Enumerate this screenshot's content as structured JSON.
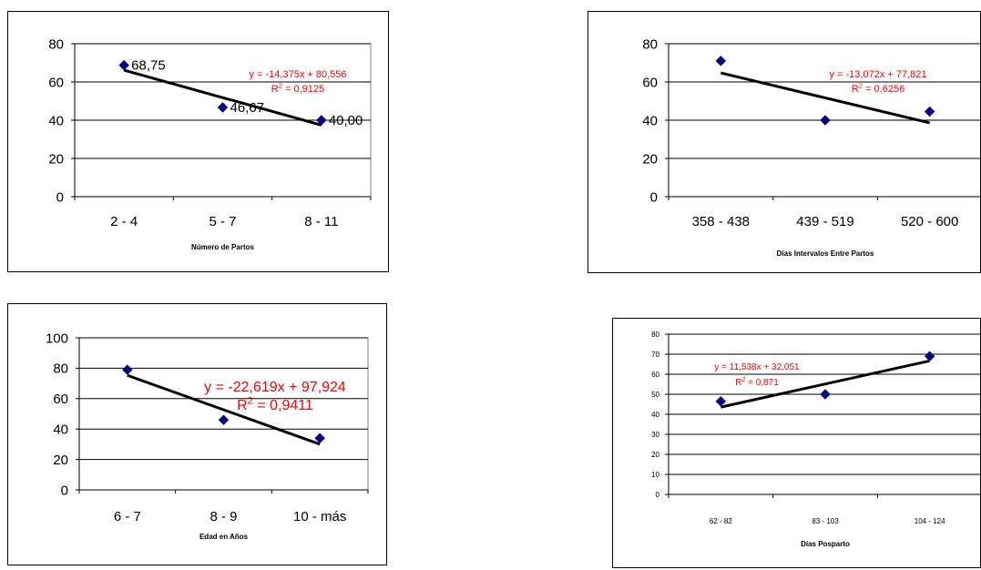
{
  "chart_data": [
    {
      "type": "scatter",
      "categories": [
        "2 - 4",
        "5 - 7",
        "8 - 11"
      ],
      "values": [
        68.75,
        46.67,
        40.0
      ],
      "data_labels": [
        "68,75",
        "46,67",
        "40,00"
      ],
      "xlabel": "Número de Partos",
      "ylabel": "",
      "ylim": [
        0,
        80
      ],
      "yticks": [
        "0",
        "20",
        "40",
        "60",
        "80"
      ],
      "trendline": {
        "slope": -14.375,
        "intercept": 80.556
      },
      "equation": "y = -14,375x + 80,556",
      "r2_label": "R",
      "r2_value": " = 0,9125",
      "grid": true
    },
    {
      "type": "scatter",
      "categories": [
        "358 - 438",
        "439 - 519",
        "520 - 600"
      ],
      "values": [
        71,
        40,
        44.5
      ],
      "xlabel": "Días Intervalos Entre Partos",
      "ylabel": "",
      "ylim": [
        0,
        80
      ],
      "yticks": [
        "0",
        "20",
        "40",
        "60",
        "80"
      ],
      "trendline": {
        "slope": -13.072,
        "intercept": 77.821
      },
      "equation": "y = -13,072x + 77,821",
      "r2_label": "R",
      "r2_value": " = 0,6256",
      "grid": true
    },
    {
      "type": "scatter",
      "categories": [
        "6 - 7",
        "8 - 9",
        "10  - más"
      ],
      "values": [
        79,
        46,
        34
      ],
      "xlabel": "Edad en Años",
      "ylabel": "",
      "ylim": [
        0,
        100
      ],
      "yticks": [
        "0",
        "20",
        "40",
        "60",
        "80",
        "100"
      ],
      "trendline": {
        "slope": -22.619,
        "intercept": 97.924
      },
      "equation": "y = -22,619x + 97,924",
      "r2_label": "R",
      "r2_value": " = 0,9411",
      "grid": true
    },
    {
      "type": "scatter",
      "categories": [
        "62 - 82",
        "83 - 103",
        "104 - 124"
      ],
      "values": [
        46.5,
        50,
        69
      ],
      "xlabel": "Días Posparto",
      "ylabel": "",
      "ylim": [
        0,
        80
      ],
      "yticks": [
        "0",
        "10",
        "20",
        "30",
        "40",
        "50",
        "60",
        "70",
        "80"
      ],
      "trendline": {
        "slope": 11.538,
        "intercept": 32.051
      },
      "equation": "y = 11,538x + 32,051",
      "r2_label": "R",
      "r2_value": " = 0,871",
      "grid": true
    }
  ],
  "colors": {
    "marker": "#00007F",
    "trendline": "#000000",
    "equation": "#FF0000",
    "grid": "#000000",
    "plot_border": "#808080"
  },
  "icons": {
    "marker": "diamond-marker"
  }
}
